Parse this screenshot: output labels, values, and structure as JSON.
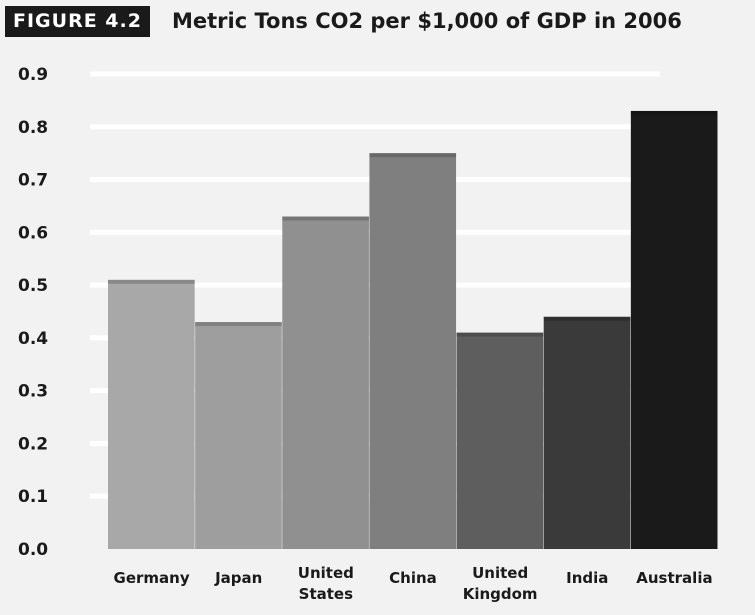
{
  "figure_label": "FIGURE 4.2",
  "chart_data": {
    "type": "bar",
    "title": "Metric Tons CO2 per $1,000 of GDP in 2006",
    "categories": [
      [
        "Germany"
      ],
      [
        "Japan"
      ],
      [
        "United",
        "States"
      ],
      [
        "China"
      ],
      [
        "United",
        "Kingdom"
      ],
      [
        "India"
      ],
      [
        "Australia"
      ]
    ],
    "values": [
      0.51,
      0.43,
      0.63,
      0.75,
      0.41,
      0.44,
      0.83
    ],
    "colors": [
      "#a8a8a8",
      "#9e9e9e",
      "#909090",
      "#7f7f7f",
      "#5e5e5e",
      "#3a3a3a",
      "#1a1a1a"
    ],
    "ylim": [
      0,
      0.9
    ],
    "yticks": [
      "0.0",
      "0.1",
      "0.2",
      "0.3",
      "0.4",
      "0.5",
      "0.6",
      "0.7",
      "0.8",
      "0.9"
    ],
    "grid": true,
    "xlabel": "",
    "ylabel": ""
  }
}
